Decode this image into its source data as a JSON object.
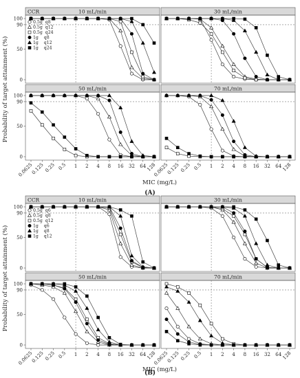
{
  "figure": {
    "y_axis_label": "Probability of target attainment (%)",
    "x_axis_label": "MIC (mg/L)",
    "strip_corner_label": "CCR"
  },
  "chart_data": [
    {
      "type": "line",
      "panel_label": "(A)",
      "x_categories": [
        "0.0625",
        "0.125",
        "0.25",
        "0.5",
        "1",
        "2",
        "4",
        "8",
        "16",
        "32",
        "64",
        "128"
      ],
      "ylim": [
        0,
        100
      ],
      "y_ticks": [
        0,
        50,
        90,
        100
      ],
      "reference_lines": {
        "x_category": "1",
        "y": 90
      },
      "legend": [
        {
          "label": "0.5g  q8",
          "marker": "circle-open"
        },
        {
          "label": "0.5g  q12",
          "marker": "triangle-open"
        },
        {
          "label": "0.5g  q24",
          "marker": "square-open"
        },
        {
          "label": "1g    q8",
          "marker": "circle-filled"
        },
        {
          "label": "1g    q12",
          "marker": "triangle-filled"
        },
        {
          "label": "1g    q24",
          "marker": "square-filled"
        }
      ],
      "facets": [
        {
          "strip": "10 mL/min",
          "series": [
            [
              100,
              100,
              100,
              100,
              100,
              100,
              100,
              98,
              55,
              10,
              0,
              0
            ],
            [
              100,
              100,
              100,
              100,
              100,
              100,
              100,
              100,
              80,
              20,
              2,
              0
            ],
            [
              100,
              100,
              100,
              100,
              100,
              100,
              100,
              100,
              95,
              45,
              5,
              0
            ],
            [
              100,
              100,
              100,
              100,
              100,
              100,
              100,
              100,
              100,
              75,
              10,
              0
            ],
            [
              100,
              100,
              100,
              100,
              100,
              100,
              100,
              100,
              100,
              95,
              60,
              12
            ],
            [
              100,
              100,
              100,
              100,
              100,
              100,
              100,
              100,
              100,
              100,
              90,
              60
            ]
          ]
        },
        {
          "strip": "30 mL/min",
          "series": [
            [
              100,
              100,
              100,
              100,
              65,
              25,
              5,
              1,
              0,
              0,
              0,
              0
            ],
            [
              100,
              100,
              100,
              99,
              85,
              55,
              25,
              5,
              1,
              0,
              0,
              0
            ],
            [
              100,
              100,
              98,
              93,
              75,
              45,
              15,
              3,
              0,
              0,
              0,
              0
            ],
            [
              100,
              100,
              100,
              100,
              100,
              97,
              75,
              35,
              5,
              0,
              0,
              0
            ],
            [
              100,
              100,
              100,
              100,
              100,
              100,
              97,
              80,
              45,
              8,
              0,
              0
            ],
            [
              100,
              100,
              100,
              100,
              100,
              100,
              100,
              99,
              85,
              40,
              5,
              0
            ]
          ]
        },
        {
          "strip": "50 mL/min",
          "series": [
            [
              100,
              100,
              100,
              100,
              100,
              95,
              70,
              28,
              3,
              0,
              0,
              0
            ],
            [
              100,
              100,
              100,
              100,
              100,
              100,
              95,
              65,
              20,
              2,
              0,
              0
            ],
            [
              75,
              52,
              30,
              12,
              2,
              0,
              0,
              0,
              0,
              0,
              0,
              0
            ],
            [
              100,
              100,
              100,
              100,
              100,
              100,
              100,
              92,
              40,
              5,
              0,
              0
            ],
            [
              100,
              100,
              100,
              100,
              100,
              100,
              100,
              100,
              80,
              25,
              2,
              0
            ],
            [
              88,
              73,
              52,
              32,
              13,
              2,
              0,
              0,
              0,
              0,
              0,
              0
            ]
          ]
        },
        {
          "strip": "70 mL/min",
          "series": [
            [
              100,
              100,
              98,
              85,
              45,
              10,
              1,
              0,
              0,
              0,
              0,
              0
            ],
            [
              100,
              100,
              100,
              98,
              82,
              45,
              12,
              1,
              0,
              0,
              0,
              0
            ],
            [
              15,
              5,
              1,
              0,
              0,
              0,
              0,
              0,
              0,
              0,
              0,
              0
            ],
            [
              100,
              100,
              100,
              100,
              93,
              68,
              25,
              3,
              0,
              0,
              0,
              0
            ],
            [
              100,
              100,
              100,
              100,
              100,
              92,
              58,
              15,
              1,
              0,
              0,
              0
            ],
            [
              30,
              15,
              5,
              1,
              0,
              0,
              0,
              0,
              0,
              0,
              0,
              0
            ]
          ]
        }
      ]
    },
    {
      "type": "line",
      "panel_label": "(B)",
      "x_categories": [
        "0.0625",
        "0.125",
        "0.25",
        "0.5",
        "1",
        "2",
        "4",
        "8",
        "16",
        "32",
        "64",
        "128"
      ],
      "ylim": [
        0,
        100
      ],
      "y_ticks": [
        0,
        50,
        90,
        100
      ],
      "reference_lines": {
        "x_category": "1",
        "y": 90
      },
      "legend": [
        {
          "label": "0.5g  q6",
          "marker": "circle-open"
        },
        {
          "label": "0.5g  q8",
          "marker": "triangle-open"
        },
        {
          "label": "0.5g  q12",
          "marker": "square-open"
        },
        {
          "label": "1g    q6",
          "marker": "circle-filled"
        },
        {
          "label": "1g    q8",
          "marker": "triangle-filled"
        },
        {
          "label": "1g    q12",
          "marker": "square-filled"
        }
      ],
      "facets": [
        {
          "strip": "10 mL/min",
          "series": [
            [
              100,
              100,
              100,
              100,
              100,
              100,
              100,
              88,
              18,
              2,
              0,
              0
            ],
            [
              100,
              100,
              100,
              100,
              100,
              100,
              100,
              95,
              40,
              5,
              0,
              0
            ],
            [
              100,
              100,
              100,
              100,
              100,
              100,
              100,
              98,
              55,
              10,
              1,
              0
            ],
            [
              100,
              100,
              100,
              100,
              100,
              100,
              100,
              100,
              65,
              12,
              1,
              0
            ],
            [
              100,
              100,
              100,
              100,
              100,
              100,
              100,
              100,
              85,
              20,
              2,
              0
            ],
            [
              100,
              100,
              100,
              100,
              100,
              100,
              100,
              100,
              95,
              85,
              10,
              0
            ]
          ]
        },
        {
          "strip": "30 mL/min",
          "series": [
            [
              100,
              100,
              100,
              100,
              98,
              85,
              50,
              15,
              2,
              0,
              0,
              0
            ],
            [
              100,
              100,
              100,
              100,
              100,
              95,
              75,
              40,
              8,
              0,
              0,
              0
            ],
            [
              100,
              100,
              100,
              100,
              100,
              97,
              85,
              55,
              15,
              1,
              0,
              0
            ],
            [
              100,
              100,
              100,
              100,
              100,
              100,
              90,
              60,
              15,
              1,
              0,
              0
            ],
            [
              100,
              100,
              100,
              100,
              100,
              100,
              98,
              85,
              40,
              5,
              0,
              0
            ],
            [
              100,
              100,
              100,
              100,
              100,
              100,
              100,
              95,
              80,
              45,
              5,
              0
            ]
          ]
        },
        {
          "strip": "50 mL/min",
          "series": [
            [
              98,
              90,
              75,
              45,
              18,
              3,
              0,
              0,
              0,
              0,
              0,
              0
            ],
            [
              100,
              98,
              95,
              85,
              55,
              22,
              5,
              0,
              0,
              0,
              0,
              0
            ],
            [
              100,
              100,
              98,
              93,
              75,
              42,
              12,
              2,
              0,
              0,
              0,
              0
            ],
            [
              100,
              100,
              98,
              92,
              70,
              35,
              8,
              1,
              0,
              0,
              0,
              0
            ],
            [
              100,
              100,
              100,
              98,
              88,
              60,
              25,
              5,
              0,
              0,
              0,
              0
            ],
            [
              100,
              100,
              100,
              100,
              95,
              80,
              45,
              12,
              1,
              0,
              0,
              0
            ]
          ]
        },
        {
          "strip": "70 mL/min",
          "series": [
            [
              60,
              30,
              10,
              2,
              0,
              0,
              0,
              0,
              0,
              0,
              0,
              0
            ],
            [
              85,
              60,
              30,
              10,
              2,
              0,
              0,
              0,
              0,
              0,
              0,
              0
            ],
            [
              100,
              95,
              85,
              65,
              35,
              10,
              2,
              0,
              0,
              0,
              0,
              0
            ],
            [
              42,
              18,
              5,
              1,
              0,
              0,
              0,
              0,
              0,
              0,
              0,
              0
            ],
            [
              95,
              88,
              70,
              40,
              15,
              3,
              0,
              0,
              0,
              0,
              0,
              0
            ],
            [
              22,
              7,
              2,
              0,
              0,
              0,
              0,
              0,
              0,
              0,
              0,
              0
            ]
          ]
        }
      ]
    }
  ]
}
